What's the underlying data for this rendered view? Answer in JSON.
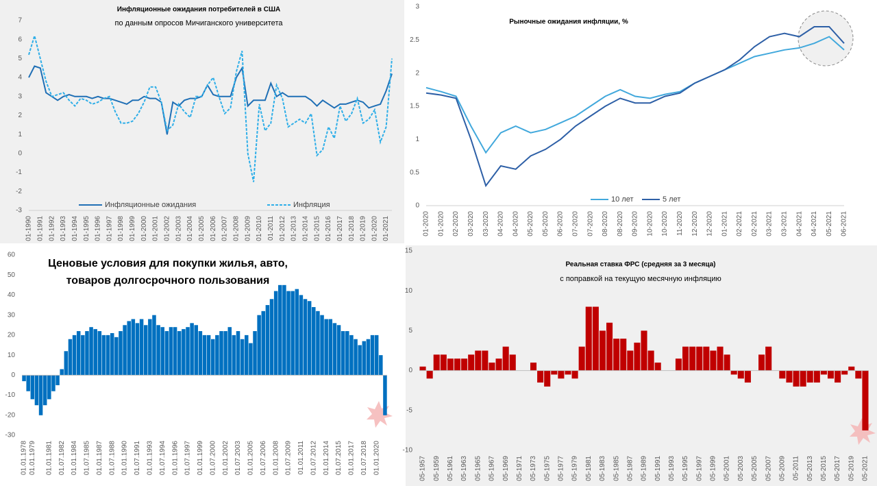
{
  "chart_data": [
    {
      "type": "line",
      "title": "Инфляционные ожидания потребителей в США",
      "subtitle": "по данным опросов Мичиганского университета",
      "categories": [
        "01-1990",
        null,
        "01-1991",
        null,
        "01-1992",
        null,
        "01-1993",
        null,
        "01-1994",
        null,
        "01-1995",
        null,
        "01-1996",
        null,
        "01-1997",
        null,
        "01-1998",
        null,
        "01-1999",
        null,
        "01-2000",
        null,
        "01-2001",
        null,
        "01-2002",
        null,
        "01-2003",
        null,
        "01-2004",
        null,
        "01-2005",
        null,
        "01-2006",
        null,
        "01-2007",
        null,
        "01-2008",
        null,
        "01-2009",
        null,
        "01-2010",
        null,
        "01-2011",
        null,
        "01-2012",
        null,
        "01-2013",
        null,
        "01-2014",
        null,
        "01-2015",
        null,
        "01-2016",
        null,
        "01-2017",
        null,
        "01-2018",
        null,
        "01-2019",
        null,
        "01-2020",
        null,
        "01-2021",
        null
      ],
      "series": [
        {
          "name": "Инфляционные ожидания",
          "color": "#1f6fb5",
          "style": "solid",
          "values": [
            4.0,
            4.6,
            4.5,
            3.2,
            3.0,
            2.8,
            3.0,
            3.1,
            3.0,
            3.0,
            3.0,
            2.9,
            3.0,
            2.9,
            2.9,
            2.8,
            2.7,
            2.6,
            2.8,
            2.8,
            3.0,
            2.9,
            2.9,
            2.7,
            1.0,
            2.7,
            2.5,
            2.8,
            2.9,
            2.9,
            3.0,
            3.6,
            3.1,
            3.0,
            3.0,
            3.0,
            4.0,
            4.5,
            2.5,
            2.8,
            2.8,
            2.8,
            3.7,
            3.0,
            3.2,
            3.0,
            3.0,
            3.0,
            3.0,
            2.8,
            2.5,
            2.8,
            2.6,
            2.4,
            2.6,
            2.6,
            2.7,
            2.8,
            2.7,
            2.4,
            2.5,
            2.6,
            3.3,
            4.2
          ]
        },
        {
          "name": "Инфляция",
          "color": "#2eaee8",
          "style": "dashed",
          "values": [
            5.2,
            6.2,
            5.0,
            3.8,
            3.0,
            3.1,
            3.2,
            2.8,
            2.5,
            2.9,
            2.8,
            2.6,
            2.7,
            2.9,
            3.0,
            2.2,
            1.6,
            1.6,
            1.7,
            2.1,
            2.7,
            3.5,
            3.5,
            2.7,
            1.2,
            1.5,
            2.6,
            2.2,
            1.9,
            3.0,
            3.0,
            3.6,
            4.0,
            3.0,
            2.1,
            2.4,
            4.3,
            5.4,
            0.0,
            -1.5,
            2.6,
            1.2,
            1.6,
            3.6,
            2.9,
            1.4,
            1.6,
            1.8,
            1.6,
            2.1,
            -0.1,
            0.2,
            1.4,
            0.8,
            2.5,
            1.7,
            2.1,
            2.9,
            1.6,
            1.8,
            2.3,
            0.6,
            1.4,
            5.0
          ]
        }
      ],
      "ylim": [
        -3,
        7
      ],
      "yticks": [
        -3,
        -2,
        -1,
        0,
        1,
        2,
        3,
        4,
        5,
        6,
        7
      ],
      "grid": false,
      "legend": "bottom"
    },
    {
      "type": "line",
      "title": "Рыночные ожидания инфляции, %",
      "categories": [
        "01-2020",
        "01-2020",
        "02-2020",
        "03-2020",
        "03-2020",
        "04-2020",
        "04-2020",
        "05-2020",
        "05-2020",
        "06-2020",
        "07-2020",
        "07-2020",
        "08-2020",
        "08-2020",
        "09-2020",
        "10-2020",
        "10-2020",
        "11-2020",
        "12-2020",
        "12-2020",
        "01-2021",
        "02-2021",
        "02-2021",
        "03-2021",
        "03-2021",
        "04-2021",
        "04-2021",
        "05-2021",
        "06-2021"
      ],
      "series": [
        {
          "name": "10 лет",
          "color": "#41a8dc",
          "style": "solid",
          "values": [
            1.78,
            1.72,
            1.65,
            1.2,
            0.8,
            1.1,
            1.2,
            1.1,
            1.15,
            1.25,
            1.35,
            1.5,
            1.65,
            1.75,
            1.65,
            1.62,
            1.68,
            1.72,
            1.85,
            1.95,
            2.05,
            2.15,
            2.25,
            2.3,
            2.35,
            2.38,
            2.45,
            2.55,
            2.35
          ]
        },
        {
          "name": "5 лет",
          "color": "#2d5fa6",
          "style": "solid",
          "values": [
            1.7,
            1.67,
            1.62,
            1.0,
            0.3,
            0.6,
            0.55,
            0.75,
            0.85,
            1.0,
            1.2,
            1.35,
            1.5,
            1.62,
            1.55,
            1.55,
            1.65,
            1.7,
            1.85,
            1.95,
            2.05,
            2.2,
            2.4,
            2.55,
            2.6,
            2.55,
            2.7,
            2.7,
            2.45
          ]
        }
      ],
      "ylim": [
        0,
        3
      ],
      "yticks": [
        0,
        0.5,
        1,
        1.5,
        2,
        2.5,
        3
      ],
      "grid": false,
      "legend": "bottom"
    },
    {
      "type": "bar",
      "title": "Ценовые условия для покупки жилья, авто, товаров долгосрочного пользования",
      "categories": [
        "01.01.1978",
        null,
        "01.01.1979",
        null,
        null,
        null,
        "01.01.1981",
        null,
        null,
        "01.07.1982",
        null,
        null,
        "01.01.1984",
        null,
        null,
        "01.07.1985",
        null,
        null,
        "01.01.1987",
        null,
        null,
        "01.07.1988",
        null,
        null,
        "01.01.1990",
        null,
        null,
        "01.07.1991",
        null,
        null,
        "01.01.1993",
        null,
        null,
        "01.07.1994",
        null,
        null,
        "01.01.1996",
        null,
        null,
        "01.07.1997",
        null,
        null,
        "01.01.1999",
        null,
        null,
        "01.07.2000",
        null,
        null,
        "01.01.2002",
        null,
        null,
        "01.07.2003",
        null,
        null,
        "01.01.2005",
        null,
        null,
        "01.07.2006",
        null,
        null,
        "01.01.2008",
        null,
        null,
        "01.07.2009",
        null,
        null,
        "01.01.2011",
        null,
        null,
        "01.07.2012",
        null,
        null,
        "01.01.2014",
        null,
        null,
        "01.07.2015",
        null,
        null,
        "01.01.2017",
        null,
        null,
        "01.07.2018",
        null,
        null,
        "01.01.2020",
        null,
        null
      ],
      "values": [
        -3,
        -8,
        -12,
        -15,
        -20,
        -15,
        -12,
        -8,
        -5,
        3,
        12,
        18,
        20,
        22,
        20,
        22,
        24,
        23,
        22,
        20,
        20,
        21,
        19,
        22,
        25,
        27,
        28,
        26,
        28,
        25,
        28,
        30,
        25,
        24,
        22,
        24,
        24,
        22,
        23,
        24,
        26,
        25,
        22,
        20,
        20,
        18,
        20,
        22,
        22,
        24,
        20,
        22,
        18,
        20,
        16,
        22,
        30,
        32,
        35,
        38,
        42,
        45,
        45,
        42,
        42,
        43,
        40,
        38,
        37,
        34,
        32,
        30,
        28,
        28,
        26,
        25,
        22,
        22,
        20,
        18,
        15,
        17,
        18,
        20,
        20,
        10,
        -20
      ],
      "color": "#0070c0",
      "ylim": [
        -30,
        60
      ],
      "yticks": [
        -30,
        -20,
        -10,
        0,
        10,
        20,
        30,
        40,
        50,
        60
      ],
      "grid": false
    },
    {
      "type": "bar",
      "title": "Реальная ставка ФРС (средняя за 3 месяца)",
      "subtitle": "с поправкой на текущую месячную инфляцию",
      "categories": [
        "05-1957",
        null,
        "05-1959",
        null,
        "05-1961",
        null,
        "05-1963",
        null,
        "05-1965",
        null,
        "05-1967",
        null,
        "05-1969",
        null,
        "05-1971",
        null,
        "05-1973",
        null,
        "05-1975",
        null,
        "05-1977",
        null,
        "05-1979",
        null,
        "05-1981",
        null,
        "05-1983",
        null,
        "05-1985",
        null,
        "05-1987",
        null,
        "05-1989",
        null,
        "05-1991",
        null,
        "05-1993",
        null,
        "05-1995",
        null,
        "05-1997",
        null,
        "05-1999",
        null,
        "05-2001",
        null,
        "05-2003",
        null,
        "05-2005",
        null,
        "05-2007",
        null,
        "05-2009",
        null,
        "05-2011",
        null,
        "05-2013",
        null,
        "05-2015",
        null,
        "05-2017",
        null,
        "05-2019",
        null,
        "05-2021"
      ],
      "values": [
        0.5,
        -1,
        2,
        2,
        1.5,
        1.5,
        1.5,
        2,
        2.5,
        2.5,
        1,
        1.5,
        3,
        2,
        0,
        0,
        1,
        -1.5,
        -2,
        -0.5,
        -1,
        -0.5,
        -1,
        3,
        8,
        8,
        5,
        6,
        4,
        4,
        2.5,
        3.5,
        5,
        2.5,
        1,
        0,
        0,
        1.5,
        3,
        3,
        3,
        3,
        2.5,
        3,
        2,
        -0.5,
        -1,
        -1.5,
        0,
        2,
        3,
        0,
        -1,
        -1.5,
        -2,
        -2,
        -1.5,
        -1.5,
        -0.5,
        -1,
        -1.5,
        -0.5,
        0.5,
        -1,
        -7.5
      ],
      "color": "#c00000",
      "ylim": [
        -10,
        15
      ],
      "yticks": [
        -10,
        -5,
        0,
        5,
        10,
        15
      ],
      "grid": false
    }
  ]
}
